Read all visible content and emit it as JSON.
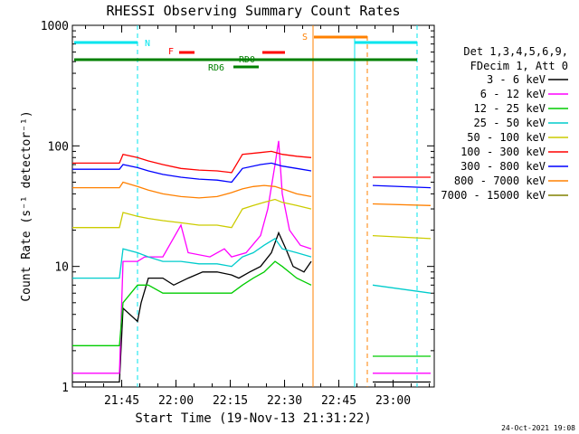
{
  "chart_data": {
    "type": "line",
    "title": "RHESSI Observing Summary Count Rates",
    "xlabel": "Start Time (19-Nov-13 21:31:22)",
    "ylabel": "Count Rate (s⁻¹ detector⁻¹)",
    "y_scale": "log",
    "ylim": [
      1,
      1000
    ],
    "xlim_minutes": [
      0,
      100
    ],
    "grid": false,
    "x_ticks": [
      "21:45",
      "22:00",
      "22:15",
      "22:30",
      "22:45",
      "23:00"
    ],
    "y_tick_labels": [
      "1",
      "10",
      "100",
      "1000"
    ],
    "legend": {
      "placement": "right",
      "header": [
        "Det 1,3,4,5,6,9,",
        "FDecim 1, Att 0"
      ]
    },
    "series": [
      {
        "name": "3 - 6 keV",
        "color": "#000000",
        "values": [
          [
            0,
            1.1
          ],
          [
            13,
            1.1
          ],
          [
            14,
            4.5
          ],
          [
            18,
            3.5
          ],
          [
            19,
            5
          ],
          [
            21,
            8
          ],
          [
            25,
            8
          ],
          [
            28,
            7
          ],
          [
            32,
            8
          ],
          [
            36,
            9
          ],
          [
            40,
            9
          ],
          [
            44,
            8.5
          ],
          [
            46,
            8
          ],
          [
            49,
            9
          ],
          [
            52,
            10
          ],
          [
            55,
            13
          ],
          [
            57,
            19
          ],
          [
            59,
            14
          ],
          [
            61,
            10
          ],
          [
            64,
            9
          ],
          [
            66,
            11
          ],
          [
            69,
            null
          ],
          [
            82,
            null
          ],
          [
            83,
            1.1
          ],
          [
            99,
            1.1
          ]
        ]
      },
      {
        "name": "6 - 12 keV",
        "color": "#ff00ff",
        "values": [
          [
            0,
            1.3
          ],
          [
            13,
            1.3
          ],
          [
            14,
            11
          ],
          [
            18,
            11
          ],
          [
            20,
            12
          ],
          [
            25,
            12
          ],
          [
            30,
            22
          ],
          [
            32,
            13
          ],
          [
            38,
            12
          ],
          [
            42,
            14
          ],
          [
            44,
            12
          ],
          [
            48,
            13
          ],
          [
            52,
            18
          ],
          [
            54,
            30
          ],
          [
            56,
            70
          ],
          [
            57,
            110
          ],
          [
            58,
            40
          ],
          [
            60,
            20
          ],
          [
            63,
            15
          ],
          [
            66,
            14
          ],
          [
            69,
            null
          ],
          [
            82,
            null
          ],
          [
            83,
            1.3
          ],
          [
            99,
            1.3
          ]
        ]
      },
      {
        "name": "12 - 25 keV",
        "color": "#00cc00",
        "values": [
          [
            0,
            2.2
          ],
          [
            13,
            2.2
          ],
          [
            14,
            5
          ],
          [
            18,
            7
          ],
          [
            21,
            7
          ],
          [
            25,
            6
          ],
          [
            30,
            6
          ],
          [
            35,
            6
          ],
          [
            40,
            6
          ],
          [
            44,
            6
          ],
          [
            47,
            7
          ],
          [
            50,
            8
          ],
          [
            53,
            9
          ],
          [
            56,
            11
          ],
          [
            58,
            10
          ],
          [
            62,
            8
          ],
          [
            66,
            7
          ],
          [
            69,
            null
          ],
          [
            82,
            null
          ],
          [
            83,
            1.8
          ],
          [
            99,
            1.8
          ]
        ]
      },
      {
        "name": "25 - 50 keV",
        "color": "#00cccc",
        "values": [
          [
            0,
            8
          ],
          [
            13,
            8
          ],
          [
            14,
            14
          ],
          [
            18,
            13
          ],
          [
            21,
            12
          ],
          [
            25,
            11
          ],
          [
            30,
            11
          ],
          [
            35,
            10.5
          ],
          [
            40,
            10.5
          ],
          [
            44,
            10
          ],
          [
            47,
            12
          ],
          [
            50,
            13
          ],
          [
            53,
            15
          ],
          [
            56,
            17
          ],
          [
            58,
            14
          ],
          [
            62,
            13
          ],
          [
            66,
            12
          ],
          [
            69,
            null
          ],
          [
            82,
            null
          ],
          [
            83,
            7
          ],
          [
            99,
            6
          ]
        ]
      },
      {
        "name": "50 - 100 keV",
        "color": "#cccc00",
        "values": [
          [
            0,
            21
          ],
          [
            13,
            21
          ],
          [
            14,
            28
          ],
          [
            18,
            26
          ],
          [
            21,
            25
          ],
          [
            25,
            24
          ],
          [
            30,
            23
          ],
          [
            35,
            22
          ],
          [
            40,
            22
          ],
          [
            44,
            21
          ],
          [
            47,
            30
          ],
          [
            50,
            32
          ],
          [
            53,
            34
          ],
          [
            56,
            36
          ],
          [
            58,
            34
          ],
          [
            62,
            32
          ],
          [
            66,
            30
          ],
          [
            69,
            null
          ],
          [
            82,
            null
          ],
          [
            83,
            18
          ],
          [
            99,
            17
          ]
        ]
      },
      {
        "name": "100 - 300 keV",
        "color": "#ff0000",
        "values": [
          [
            0,
            72
          ],
          [
            13,
            72
          ],
          [
            14,
            85
          ],
          [
            18,
            80
          ],
          [
            21,
            75
          ],
          [
            25,
            70
          ],
          [
            30,
            65
          ],
          [
            35,
            63
          ],
          [
            40,
            62
          ],
          [
            44,
            60
          ],
          [
            47,
            85
          ],
          [
            52,
            88
          ],
          [
            55,
            90
          ],
          [
            58,
            85
          ],
          [
            62,
            82
          ],
          [
            66,
            80
          ],
          [
            69,
            null
          ],
          [
            82,
            null
          ],
          [
            83,
            55
          ],
          [
            99,
            55
          ]
        ]
      },
      {
        "name": "300 - 800 keV",
        "color": "#0000ff",
        "values": [
          [
            0,
            64
          ],
          [
            13,
            64
          ],
          [
            14,
            70
          ],
          [
            18,
            66
          ],
          [
            21,
            62
          ],
          [
            25,
            58
          ],
          [
            30,
            55
          ],
          [
            35,
            53
          ],
          [
            40,
            52
          ],
          [
            44,
            50
          ],
          [
            47,
            65
          ],
          [
            52,
            70
          ],
          [
            55,
            72
          ],
          [
            58,
            68
          ],
          [
            62,
            65
          ],
          [
            66,
            62
          ],
          [
            69,
            null
          ],
          [
            82,
            null
          ],
          [
            83,
            47
          ],
          [
            99,
            45
          ]
        ]
      },
      {
        "name": "800 - 7000 keV",
        "color": "#ff8000",
        "values": [
          [
            0,
            45
          ],
          [
            13,
            45
          ],
          [
            14,
            50
          ],
          [
            18,
            46
          ],
          [
            21,
            43
          ],
          [
            25,
            40
          ],
          [
            30,
            38
          ],
          [
            35,
            37
          ],
          [
            40,
            38
          ],
          [
            44,
            41
          ],
          [
            47,
            44
          ],
          [
            50,
            46
          ],
          [
            53,
            47
          ],
          [
            56,
            46
          ],
          [
            59,
            43
          ],
          [
            62,
            40
          ],
          [
            66,
            38
          ],
          [
            69,
            null
          ],
          [
            82,
            null
          ],
          [
            83,
            33
          ],
          [
            99,
            32
          ]
        ]
      },
      {
        "name": "7000 - 15000 keV",
        "color": "#808000",
        "values": []
      }
    ],
    "annotations": {
      "N": {
        "label": "N",
        "color": "#00e5ee"
      },
      "F": {
        "label": "F",
        "color": "#ff0000"
      },
      "S": {
        "label": "S",
        "color": "#ff8000"
      },
      "RD0": {
        "label": "RD0",
        "color": "#008000"
      },
      "RD6": {
        "label": "RD6",
        "color": "#008000"
      }
    },
    "footer_date": "24-Oct-2021 19:08"
  }
}
